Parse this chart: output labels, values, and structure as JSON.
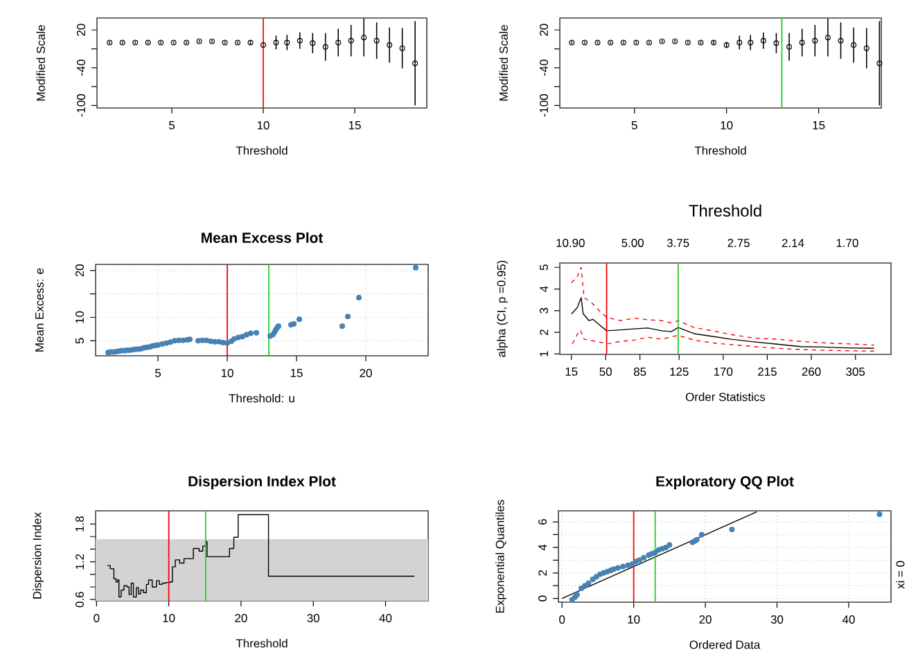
{
  "chart_data": [
    {
      "type": "scatter",
      "xlabel": "Threshold",
      "ylabel": "Modified Scale",
      "color": "#000000",
      "marker": "circle",
      "x": [
        1.6,
        2.3,
        3.0,
        3.7,
        4.4,
        5.1,
        5.8,
        6.5,
        7.2,
        7.9,
        8.6,
        9.3,
        10.0,
        10.7,
        11.3,
        12.0,
        12.7,
        13.4,
        14.1,
        14.8,
        15.5,
        16.2,
        16.9,
        17.6,
        18.3
      ],
      "values": [
        0,
        0,
        0,
        0,
        0,
        0,
        0,
        2,
        2,
        0,
        0,
        0,
        -4,
        0,
        0,
        3,
        -1,
        -7,
        0,
        3,
        8,
        3,
        -4,
        -9,
        -33
      ],
      "errors": [
        2,
        2,
        2,
        2,
        2,
        2,
        2,
        2,
        2,
        2,
        2,
        3,
        5,
        11,
        12,
        13,
        16,
        22,
        22,
        25,
        30,
        29,
        28,
        32,
        67
      ],
      "xlim": [
        0.91,
        18.94
      ],
      "ylim": [
        -104,
        39
      ],
      "xticks": [
        5,
        10,
        15
      ],
      "yticks": [
        20,
        {
          "value": -10,
          "label": null
        },
        -40,
        {
          "value": -70,
          "label": null
        },
        -100
      ],
      "ref_lines": [
        {
          "axis": "x",
          "value": 10,
          "color": "#ff0000"
        }
      ]
    },
    {
      "type": "scatter",
      "xlabel": "Threshold",
      "ylabel": "Modified Scale",
      "color": "#000000",
      "marker": "circle",
      "x": [
        1.6,
        2.3,
        3.0,
        3.7,
        4.4,
        5.1,
        5.8,
        6.5,
        7.2,
        7.9,
        8.6,
        9.3,
        10.0,
        10.7,
        11.3,
        12.0,
        12.7,
        13.4,
        14.1,
        14.8,
        15.5,
        16.2,
        16.9,
        17.6,
        18.3
      ],
      "values": [
        0,
        0,
        0,
        0,
        0,
        0,
        0,
        2,
        2,
        0,
        0,
        0,
        -4,
        0,
        0,
        3,
        -1,
        -7,
        0,
        3,
        8,
        3,
        -4,
        -9,
        -33
      ],
      "errors": [
        2,
        2,
        2,
        2,
        2,
        2,
        2,
        2,
        2,
        2,
        2,
        3,
        5,
        11,
        12,
        13,
        16,
        22,
        22,
        25,
        30,
        29,
        28,
        32,
        67
      ],
      "xlim": [
        0.95,
        18.4
      ],
      "ylim": [
        -104,
        39
      ],
      "xticks": [
        5,
        10,
        15
      ],
      "yticks": [
        20,
        {
          "value": -10,
          "label": null
        },
        -40,
        {
          "value": -70,
          "label": null
        },
        -100
      ],
      "ref_lines": [
        {
          "axis": "x",
          "value": 13,
          "color": "#22cc22"
        }
      ]
    },
    {
      "type": "scatter",
      "title": "Mean Excess Plot",
      "xlabel": "Threshold: u",
      "ylabel": "Mean Excess: e",
      "color": "#4682b4",
      "marker": "circle",
      "grid": true,
      "x": [
        1.4,
        1.6,
        1.8,
        2.0,
        2.2,
        2.4,
        2.6,
        2.8,
        3.0,
        3.2,
        3.4,
        3.6,
        3.8,
        4.0,
        4.2,
        4.4,
        4.6,
        4.8,
        5.0,
        5.3,
        5.6,
        5.9,
        6.2,
        6.5,
        6.8,
        7.1,
        7.3,
        7.9,
        8.2,
        8.5,
        8.8,
        9.1,
        9.4,
        9.7,
        10.0,
        10.3,
        10.5,
        10.8,
        11.1,
        11.4,
        11.7,
        12.1,
        13.1,
        13.3,
        13.4,
        13.5,
        13.6,
        13.7,
        14.6,
        14.8,
        15.2,
        18.3,
        18.7,
        19.5,
        23.6
      ],
      "values": [
        2.5,
        2.6,
        2.6,
        2.7,
        2.8,
        2.9,
        2.9,
        3.0,
        3.0,
        3.1,
        3.2,
        3.2,
        3.3,
        3.5,
        3.6,
        3.7,
        3.9,
        4.0,
        4.1,
        4.3,
        4.5,
        4.7,
        5.0,
        5.1,
        5.1,
        5.2,
        5.3,
        5.0,
        5.1,
        5.1,
        4.9,
        4.8,
        4.8,
        4.6,
        4.5,
        4.9,
        5.4,
        5.7,
        5.9,
        6.3,
        6.6,
        6.7,
        6.0,
        6.3,
        6.8,
        7.3,
        7.8,
        8.1,
        8.4,
        8.6,
        9.6,
        8.1,
        10.2,
        14.2,
        20.6
      ],
      "xlim": [
        0.5,
        24.5
      ],
      "ylim": [
        1.8,
        21.3
      ],
      "xticks": [
        5,
        10,
        15,
        20
      ],
      "yticks": [
        5,
        10,
        {
          "value": 15,
          "label": null
        },
        20
      ],
      "ref_lines": [
        {
          "axis": "x",
          "value": 10,
          "color": "#ff0000"
        },
        {
          "axis": "x",
          "value": 13,
          "color": "#22cc22"
        }
      ]
    },
    {
      "type": "line",
      "x2label": "Threshold",
      "xlabel": "Order Statistics",
      "ylabel": "alpha (CI, p =0.95)",
      "series": [
        {
          "color": "#000000",
          "x": [
            15,
            21,
            25,
            27,
            33,
            37,
            44,
            51,
            65,
            79,
            93,
            107,
            117,
            124,
            140,
            159,
            178,
            201,
            225,
            249,
            272,
            296,
            324
          ],
          "values": [
            2.84,
            3.14,
            3.6,
            2.86,
            2.54,
            2.6,
            2.33,
            2.07,
            2.11,
            2.16,
            2.2,
            2.07,
            2.03,
            2.22,
            1.94,
            1.81,
            1.68,
            1.56,
            1.45,
            1.34,
            1.32,
            1.28,
            1.26
          ]
        },
        {
          "color": "#ff0000",
          "line_style": "dashed",
          "x": [
            15,
            21,
            25,
            28,
            35,
            44,
            51,
            65,
            79,
            93,
            107,
            117,
            124,
            140,
            159,
            178,
            201,
            225,
            249,
            272,
            296,
            324
          ],
          "values": [
            4.29,
            4.57,
            5.0,
            3.6,
            3.4,
            2.97,
            2.69,
            2.54,
            2.65,
            2.58,
            2.54,
            2.43,
            2.54,
            2.22,
            2.07,
            1.9,
            1.73,
            1.68,
            1.58,
            1.51,
            1.47,
            1.41
          ]
        },
        {
          "color": "#ff0000",
          "line_style": "dashed",
          "x": [
            16,
            21,
            24,
            28,
            40,
            52,
            65,
            79,
            93,
            107,
            124,
            140,
            159,
            178,
            201,
            225,
            249,
            272,
            296,
            324
          ],
          "values": [
            1.47,
            1.9,
            2.11,
            1.68,
            1.58,
            1.47,
            1.58,
            1.64,
            1.77,
            1.68,
            1.86,
            1.64,
            1.51,
            1.43,
            1.34,
            1.26,
            1.21,
            1.17,
            1.15,
            1.13
          ]
        }
      ],
      "xlim": [
        3.2,
        341.3
      ],
      "ylim": [
        0.98,
        5.2
      ],
      "xticks": [
        15,
        50,
        85,
        125,
        170,
        215,
        260,
        305
      ],
      "yticks": [
        1,
        2,
        3,
        4,
        5
      ],
      "annotations": [
        "10.90",
        "5.00",
        "3.75",
        "2.75",
        "2.14",
        "1.70"
      ],
      "ref_lines": [
        {
          "axis": "x",
          "value": 51,
          "color": "#ff0000"
        },
        {
          "axis": "x",
          "value": 124,
          "color": "#22cc22"
        }
      ]
    },
    {
      "type": "step",
      "title": "Dispersion Index Plot",
      "xlabel": "Threshold",
      "ylabel": "Dispersion Index",
      "color": "#000000",
      "x": [
        1.5,
        1.9,
        2.4,
        2.7,
        2.9,
        3.1,
        3.4,
        3.8,
        4.2,
        4.5,
        4.8,
        5.1,
        5.5,
        5.8,
        6.1,
        6.5,
        6.9,
        7.2,
        7.7,
        8.3,
        8.7,
        9.1,
        9.6,
        10.2,
        10.5,
        10.9,
        11.5,
        12.1,
        13.4,
        14.2,
        14.7,
        15.1,
        15.3,
        18.4,
        19.0,
        19.6,
        23.8,
        44.0
      ],
      "values": [
        1.14,
        1.09,
        0.93,
        0.88,
        0.91,
        0.64,
        0.75,
        0.82,
        0.8,
        0.68,
        0.86,
        0.64,
        0.79,
        0.69,
        0.75,
        0.71,
        0.84,
        0.91,
        0.8,
        0.9,
        0.84,
        0.86,
        0.87,
        0.88,
        1.12,
        1.23,
        1.18,
        1.25,
        1.41,
        1.37,
        1.45,
        1.52,
        1.28,
        1.41,
        1.59,
        1.95,
        0.97,
        0.97
      ],
      "xlim": [
        -0.13,
        45.9
      ],
      "ylim": [
        0.58,
        2.01
      ],
      "xticks": [
        0,
        10,
        20,
        30,
        40
      ],
      "yticks": [
        0.6,
        {
          "value": 0.8,
          "label": null
        },
        {
          "value": 1.0,
          "label": null
        },
        1.2,
        {
          "value": 1.4,
          "label": null
        },
        {
          "value": 1.6,
          "label": null
        },
        1.8
      ],
      "bands": [
        {
          "axis": "y",
          "from": 0.58,
          "to": 1.56,
          "color": "#d3d3d3"
        }
      ],
      "ref_lines": [
        {
          "axis": "x",
          "value": 10,
          "color": "#ff0000"
        },
        {
          "axis": "x",
          "value": 15.1,
          "color": "#22cc22"
        }
      ]
    },
    {
      "type": "scatter",
      "title": "Exploratory QQ Plot",
      "xlabel": "Ordered Data",
      "ylabel": "Exponential Quantiles",
      "grid": true,
      "annotations": [
        "xi = 0"
      ],
      "series": [
        {
          "type": "scatter",
          "color": "#4682b4",
          "marker": "circle",
          "x": [
            1.4,
            1.8,
            2.1,
            2.7,
            3.2,
            3.7,
            4.3,
            4.8,
            5.3,
            5.8,
            6.3,
            6.8,
            7.2,
            7.8,
            8.5,
            9.2,
            9.8,
            10.3,
            10.8,
            11.4,
            12.1,
            12.5,
            13.0,
            13.5,
            14.0,
            14.5,
            15.0,
            18.2,
            18.5,
            18.8,
            19.5,
            23.7,
            44.3
          ],
          "values": [
            -0.1,
            0.1,
            0.3,
            0.8,
            1.0,
            1.2,
            1.5,
            1.7,
            1.9,
            2.0,
            2.1,
            2.2,
            2.3,
            2.4,
            2.5,
            2.6,
            2.7,
            2.9,
            3.0,
            3.2,
            3.4,
            3.5,
            3.6,
            3.8,
            3.9,
            4.0,
            4.2,
            4.4,
            4.5,
            4.6,
            5.0,
            5.4,
            6.6
          ]
        },
        {
          "type": "line",
          "color": "#000000",
          "x": [
            0,
            27.2
          ],
          "values": [
            0,
            6.8
          ]
        }
      ],
      "xlim": [
        -0.5,
        45.9
      ],
      "ylim": [
        -0.29,
        6.87
      ],
      "xticks": [
        0,
        10,
        20,
        30,
        40
      ],
      "yticks": [
        0,
        {
          "value": 1,
          "label": null
        },
        2,
        {
          "value": 3,
          "label": null
        },
        4,
        {
          "value": 5,
          "label": null
        },
        6
      ],
      "ref_lines": [
        {
          "axis": "x",
          "value": 10,
          "color": "#ff0000"
        },
        {
          "axis": "x",
          "value": 13,
          "color": "#22cc22"
        }
      ]
    }
  ]
}
